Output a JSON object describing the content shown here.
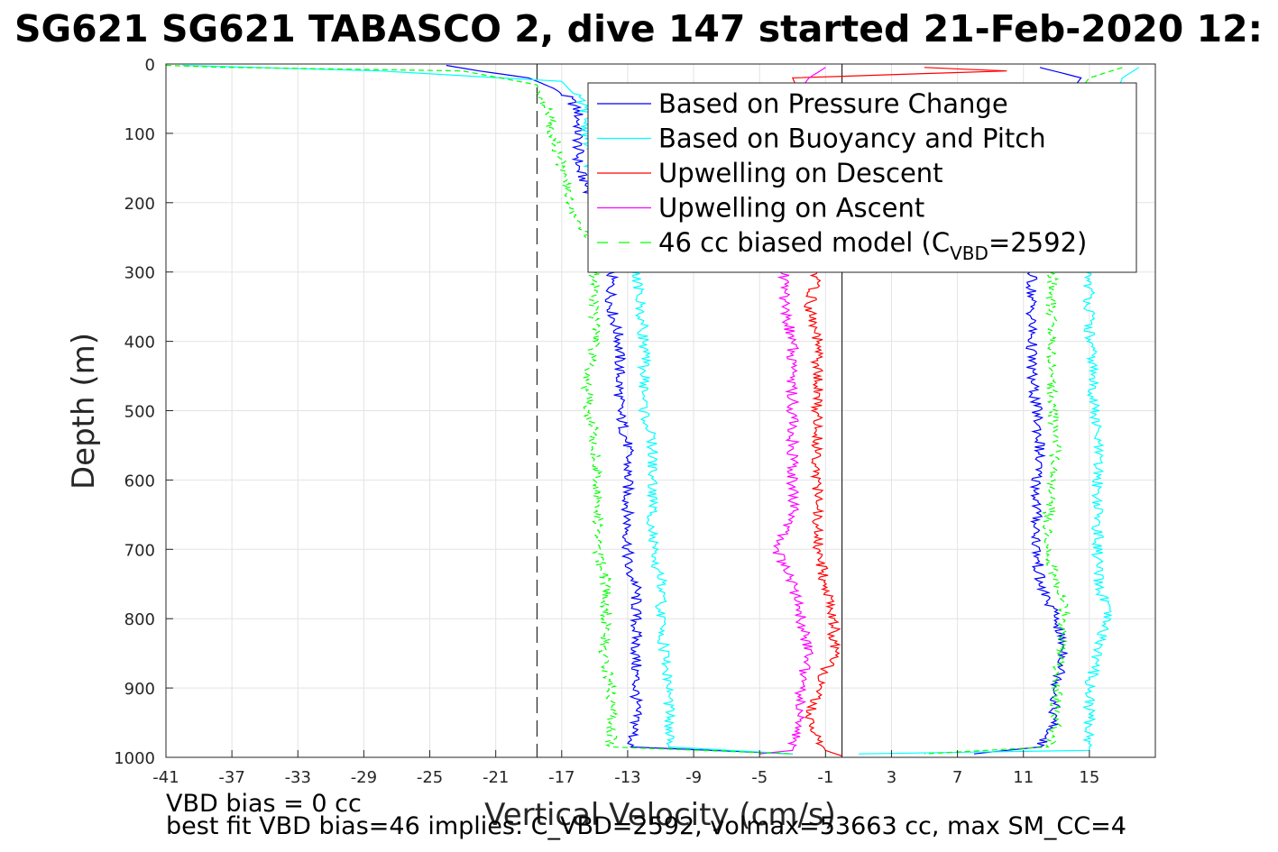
{
  "chart_data": {
    "type": "line",
    "title": "SG621 SG621 TABASCO 2, dive 147 started 21-Feb-2020 12:",
    "xlabel": "Vertical Velocity (cm/s)",
    "ylabel": "Depth (m)",
    "xlim": [
      -41,
      19
    ],
    "ylim": [
      0,
      1000
    ],
    "y_reversed": true,
    "grid": true,
    "legend_position": "top-right",
    "x_ticks": [
      "-41",
      "-37",
      "-33",
      "-29",
      "-25",
      "-21",
      "-17",
      "-13",
      "-9",
      "-5",
      "-1",
      "3",
      "7",
      "11",
      "15"
    ],
    "y_ticks": [
      "0",
      "100",
      "200",
      "300",
      "400",
      "500",
      "600",
      "700",
      "800",
      "900",
      "1000"
    ],
    "reference_lines": [
      {
        "x": -18.5,
        "style": "dashed",
        "color": "#000000"
      },
      {
        "x": 0,
        "style": "solid",
        "color": "#000000"
      }
    ],
    "series": [
      {
        "name": "Based on Pressure Change",
        "color": "#0000ff",
        "style": "solid",
        "descent": {
          "depth": [
            2,
            10,
            20,
            35,
            50,
            70,
            100,
            150,
            200,
            250,
            300,
            350,
            400,
            450,
            500,
            550,
            600,
            650,
            700,
            730,
            750,
            800,
            850,
            900,
            950,
            985,
            995
          ],
          "velocity": [
            -24,
            -22,
            -19,
            -17.5,
            -16.5,
            -16,
            -16,
            -16,
            -15,
            -14.5,
            -14,
            -14,
            -13.5,
            -13.5,
            -13.5,
            -13,
            -13,
            -13,
            -13,
            -13,
            -12.5,
            -12.5,
            -12.5,
            -12.5,
            -12.5,
            -12.8,
            -3
          ]
        },
        "ascent": {
          "depth": [
            995,
            985,
            950,
            900,
            850,
            800,
            750,
            700,
            650,
            600,
            550,
            500,
            450,
            400,
            350,
            300,
            250,
            200,
            150,
            100,
            50,
            20,
            5
          ],
          "velocity": [
            8,
            12,
            12.8,
            13,
            13.5,
            13,
            12,
            11.8,
            11.8,
            11.8,
            12,
            11.8,
            11.5,
            11.5,
            11.5,
            11.5,
            11.5,
            11.8,
            12,
            12.5,
            13.5,
            14.5,
            12
          ]
        }
      },
      {
        "name": "Based on Buoyancy and Pitch",
        "color": "#00ffff",
        "style": "solid",
        "descent": {
          "depth": [
            2,
            10,
            25,
            50,
            70,
            100,
            200,
            300,
            400,
            450,
            500,
            550,
            600,
            650,
            700,
            720,
            730,
            800,
            900,
            950,
            985,
            995
          ],
          "velocity": [
            -40,
            -28,
            -17,
            -16,
            -15.5,
            -15.5,
            -15,
            -12.5,
            -12,
            -12,
            -12,
            -11.5,
            -11.5,
            -11.5,
            -11.5,
            -11.5,
            -11,
            -11,
            -10.5,
            -10.5,
            -10.5,
            -3
          ]
        },
        "ascent": {
          "depth": [
            995,
            990,
            950,
            900,
            850,
            800,
            780,
            750,
            700,
            650,
            600,
            550,
            500,
            450,
            430,
            400,
            350,
            300,
            250,
            200,
            150,
            100,
            50,
            20,
            5
          ],
          "velocity": [
            1,
            15,
            15,
            15,
            15.5,
            16,
            16,
            15.5,
            15.5,
            15.5,
            15.5,
            15.5,
            15.3,
            15.2,
            15.2,
            15,
            15,
            15,
            15.5,
            16,
            16,
            16,
            16.5,
            17,
            18
          ]
        }
      },
      {
        "name": "Upwelling on Descent",
        "color": "#ff0000",
        "style": "solid",
        "descent": {
          "depth": [
            5,
            10,
            20,
            100,
            200,
            300,
            350,
            400,
            450,
            500,
            550,
            600,
            650,
            700,
            750,
            800,
            850,
            900,
            950,
            990,
            998
          ],
          "velocity": [
            5,
            10,
            -3,
            -1.5,
            -1.5,
            -1.5,
            -2,
            -1.5,
            -1.5,
            -1.5,
            -1.5,
            -1.5,
            -1.5,
            -1.5,
            -1,
            -0.5,
            -0.5,
            -1.5,
            -2,
            -1,
            0
          ]
        }
      },
      {
        "name": "Upwelling on Ascent",
        "color": "#ff00ff",
        "style": "solid",
        "ascent": {
          "depth": [
            995,
            990,
            950,
            900,
            850,
            800,
            750,
            700,
            650,
            600,
            550,
            500,
            450,
            400,
            350,
            300,
            200,
            100,
            50,
            20,
            5
          ],
          "velocity": [
            -5,
            -3,
            -2.5,
            -2.5,
            -2,
            -2.5,
            -3,
            -4,
            -3,
            -3,
            -3,
            -3,
            -3,
            -3,
            -3.5,
            -3.5,
            -3,
            -3,
            -3,
            -2,
            -1
          ]
        }
      },
      {
        "name": "46 cc biased model (C_VBD=2592)",
        "legend_label": "46 cc biased model (C",
        "legend_subscript": "VBD",
        "legend_suffix": "=2592)",
        "color": "#00ff00",
        "style": "dashed",
        "descent": {
          "depth": [
            2,
            10,
            30,
            60,
            100,
            150,
            200,
            250,
            270,
            300,
            400,
            450,
            500,
            550,
            600,
            650,
            700,
            730,
            750,
            800,
            850,
            900,
            950,
            985,
            995
          ],
          "velocity": [
            -45,
            -23,
            -18.5,
            -18,
            -17.5,
            -17,
            -16.5,
            -15.5,
            -15,
            -15,
            -15,
            -15.5,
            -15.3,
            -15,
            -14.8,
            -14.8,
            -14.8,
            -14.5,
            -14.3,
            -14.3,
            -14.5,
            -14,
            -14,
            -14,
            -3
          ]
        },
        "ascent": {
          "depth": [
            995,
            985,
            950,
            900,
            850,
            800,
            780,
            750,
            700,
            650,
            600,
            550,
            500,
            450,
            400,
            350,
            300,
            200,
            100,
            50,
            20,
            5
          ],
          "velocity": [
            5,
            12.5,
            13,
            13,
            13.2,
            13.5,
            13.5,
            13,
            12.5,
            12.5,
            12.8,
            13,
            12.8,
            12.7,
            12.7,
            12.7,
            12.8,
            13,
            13.5,
            14,
            15,
            17
          ]
        }
      }
    ]
  },
  "footnotes": {
    "line1": "VBD bias = 0 cc",
    "line2": "best fit VBD bias=46 implies: C_VBD=2592, volmax=53663 cc, max SM_CC=4"
  }
}
